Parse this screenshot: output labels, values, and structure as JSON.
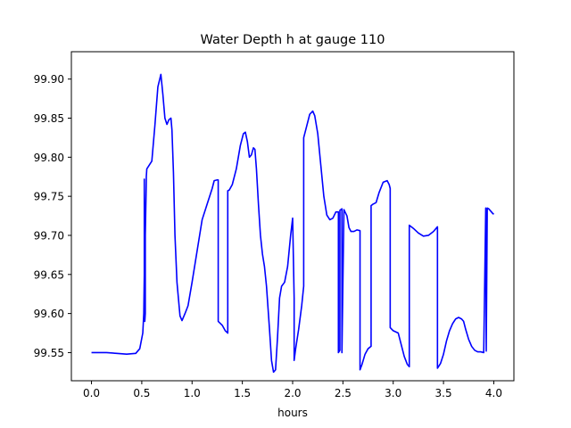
{
  "chart_data": {
    "type": "line",
    "title": "Water Depth h at gauge 110",
    "xlabel": "hours",
    "ylabel": "",
    "xlim": [
      -0.2,
      4.2
    ],
    "ylim": [
      99.514,
      99.935
    ],
    "grid": false,
    "xticks": [
      0.0,
      0.5,
      1.0,
      1.5,
      2.0,
      2.5,
      3.0,
      3.5,
      4.0
    ],
    "xtick_labels": [
      "0.0",
      "0.5",
      "1.0",
      "1.5",
      "2.0",
      "2.5",
      "3.0",
      "3.5",
      "4.0"
    ],
    "yticks": [
      99.55,
      99.6,
      99.65,
      99.7,
      99.75,
      99.8,
      99.85,
      99.9
    ],
    "ytick_labels": [
      "99.55",
      "99.60",
      "99.65",
      "99.70",
      "99.75",
      "99.80",
      "99.85",
      "99.90"
    ],
    "series": [
      {
        "color": "#0000ff",
        "x": [
          0.0,
          0.15,
          0.25,
          0.35,
          0.44,
          0.48,
          0.51,
          0.52,
          0.525,
          0.525,
          0.53,
          0.535,
          0.535,
          0.545,
          0.545,
          0.55,
          0.575,
          0.6,
          0.63,
          0.66,
          0.69,
          0.71,
          0.73,
          0.75,
          0.77,
          0.79,
          0.8,
          0.815,
          0.83,
          0.85,
          0.88,
          0.9,
          0.93,
          0.96,
          1.0,
          1.05,
          1.1,
          1.15,
          1.2,
          1.22,
          1.25,
          1.26,
          1.26,
          1.3,
          1.33,
          1.355,
          1.355,
          1.37,
          1.4,
          1.44,
          1.48,
          1.51,
          1.53,
          1.55,
          1.57,
          1.59,
          1.61,
          1.625,
          1.64,
          1.66,
          1.68,
          1.7,
          1.72,
          1.74,
          1.77,
          1.79,
          1.81,
          1.83,
          1.85,
          1.87,
          1.89,
          1.92,
          1.95,
          1.98,
          2.0,
          2.015,
          2.015,
          2.03,
          2.06,
          2.09,
          2.11,
          2.11,
          2.14,
          2.17,
          2.2,
          2.22,
          2.25,
          2.28,
          2.31,
          2.34,
          2.37,
          2.4,
          2.43,
          2.455,
          2.455,
          2.47,
          2.47,
          2.49,
          2.49,
          2.51,
          2.54,
          2.56,
          2.58,
          2.61,
          2.64,
          2.67,
          2.67,
          2.69,
          2.72,
          2.75,
          2.78,
          2.78,
          2.8,
          2.83,
          2.86,
          2.9,
          2.94,
          2.96,
          2.97,
          2.97,
          3.0,
          3.05,
          3.08,
          3.11,
          3.14,
          3.16,
          3.16,
          3.2,
          3.25,
          3.3,
          3.35,
          3.4,
          3.44,
          3.44,
          3.47,
          3.5,
          3.53,
          3.56,
          3.59,
          3.62,
          3.65,
          3.68,
          3.7,
          3.72,
          3.75,
          3.78,
          3.81,
          3.84,
          3.87,
          3.9,
          3.92,
          3.92,
          3.925,
          3.925,
          3.935,
          3.935,
          3.95,
          3.97,
          3.99,
          4.0
        ],
        "y": [
          99.55,
          99.55,
          99.549,
          99.548,
          99.549,
          99.555,
          99.575,
          99.6,
          99.65,
          99.772,
          99.59,
          99.6,
          99.7,
          99.77,
          99.775,
          99.785,
          99.79,
          99.795,
          99.84,
          99.89,
          99.906,
          99.88,
          99.85,
          99.842,
          99.848,
          99.85,
          99.835,
          99.78,
          99.7,
          99.64,
          99.597,
          99.591,
          99.6,
          99.61,
          99.64,
          99.68,
          99.72,
          99.74,
          99.76,
          99.77,
          99.771,
          99.771,
          99.59,
          99.585,
          99.578,
          99.575,
          99.757,
          99.758,
          99.765,
          99.785,
          99.815,
          99.83,
          99.832,
          99.82,
          99.8,
          99.803,
          99.812,
          99.81,
          99.785,
          99.74,
          99.7,
          99.676,
          99.66,
          99.635,
          99.58,
          99.54,
          99.525,
          99.528,
          99.57,
          99.62,
          99.635,
          99.64,
          99.66,
          99.7,
          99.722,
          99.62,
          99.54,
          99.555,
          99.58,
          99.61,
          99.635,
          99.825,
          99.84,
          99.855,
          99.859,
          99.853,
          99.83,
          99.79,
          99.75,
          99.726,
          99.72,
          99.722,
          99.73,
          99.73,
          99.55,
          99.553,
          99.732,
          99.734,
          99.55,
          99.733,
          99.725,
          99.71,
          99.705,
          99.705,
          99.707,
          99.706,
          99.528,
          99.535,
          99.548,
          99.555,
          99.558,
          99.738,
          99.74,
          99.742,
          99.755,
          99.768,
          99.77,
          99.765,
          99.76,
          99.582,
          99.578,
          99.575,
          99.56,
          99.545,
          99.535,
          99.532,
          99.713,
          99.709,
          99.703,
          99.699,
          99.7,
          99.705,
          99.711,
          99.53,
          99.536,
          99.548,
          99.565,
          99.578,
          99.587,
          99.593,
          99.595,
          99.593,
          99.59,
          99.58,
          99.567,
          99.558,
          99.553,
          99.551,
          99.551,
          99.55,
          99.735,
          99.735,
          99.552,
          99.552,
          99.735,
          99.735,
          99.734,
          99.731,
          99.728,
          99.727
        ]
      }
    ]
  }
}
